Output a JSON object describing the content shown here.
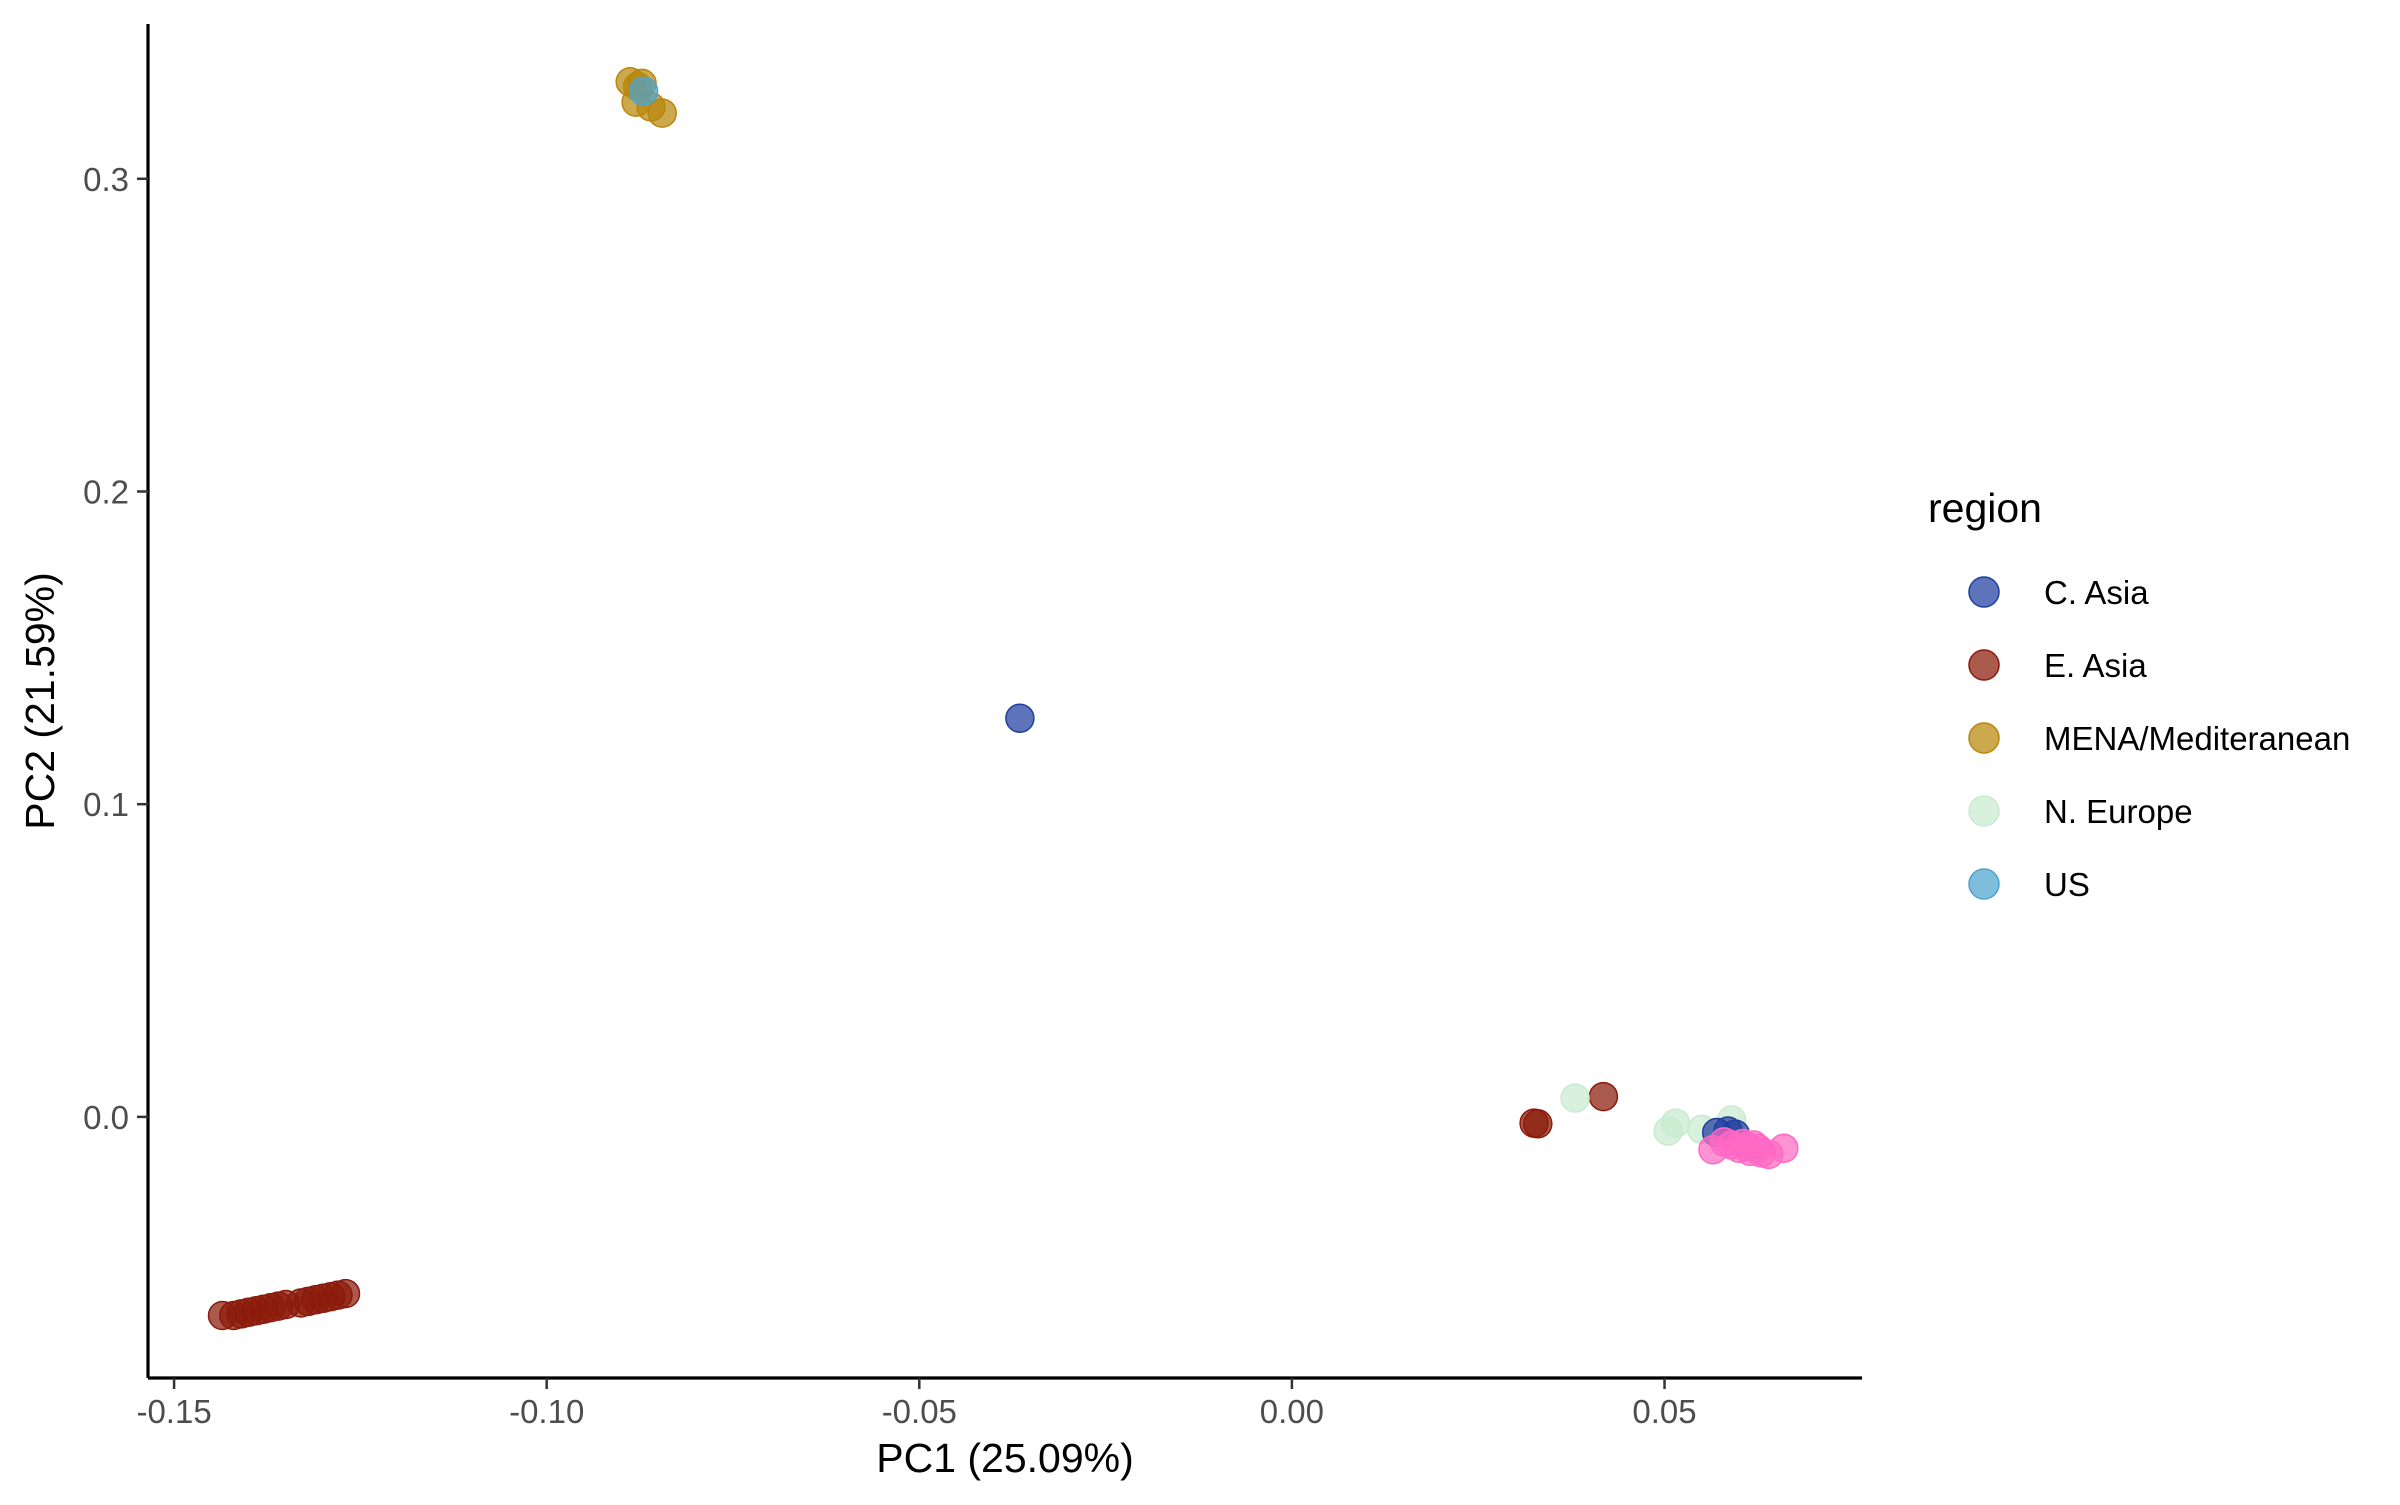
{
  "chart_data": {
    "type": "scatter",
    "title": "",
    "xlabel": "PC1 (25.09%)",
    "ylabel": "PC2 (21.59%)",
    "xlim": [
      -0.1535,
      0.0765
    ],
    "ylim": [
      -0.0835,
      0.3495
    ],
    "xticks": [
      {
        "value": -0.15,
        "label": "-0.15"
      },
      {
        "value": -0.1,
        "label": "-0.10"
      },
      {
        "value": -0.05,
        "label": "-0.05"
      },
      {
        "value": 0.0,
        "label": "0.00"
      },
      {
        "value": 0.05,
        "label": "0.05"
      }
    ],
    "yticks": [
      {
        "value": 0.0,
        "label": "0.0"
      },
      {
        "value": 0.1,
        "label": "0.1"
      },
      {
        "value": 0.2,
        "label": "0.2"
      },
      {
        "value": 0.3,
        "label": "0.3"
      }
    ],
    "grid": false,
    "legend": {
      "title": "region",
      "position": "right"
    },
    "series": [
      {
        "name": "MENA/Mediteranean",
        "color": "#B8860B",
        "points": [
          [
            -0.0888,
            0.331
          ],
          [
            -0.0878,
            0.3295
          ],
          [
            -0.0872,
            0.3305
          ],
          [
            -0.088,
            0.3245
          ],
          [
            -0.086,
            0.323
          ],
          [
            -0.0845,
            0.321
          ]
        ]
      },
      {
        "name": "US",
        "color": "#4EA3D0",
        "points": [
          [
            -0.087,
            0.328
          ]
        ]
      },
      {
        "name": "E. Asia",
        "color": "#8B1A0A",
        "points": [
          [
            -0.1435,
            -0.0635
          ],
          [
            -0.142,
            -0.0635
          ],
          [
            -0.141,
            -0.063
          ],
          [
            -0.14,
            -0.0625
          ],
          [
            -0.139,
            -0.062
          ],
          [
            -0.138,
            -0.0615
          ],
          [
            -0.137,
            -0.061
          ],
          [
            -0.136,
            -0.0605
          ],
          [
            -0.135,
            -0.06
          ],
          [
            -0.133,
            -0.0595
          ],
          [
            -0.132,
            -0.059
          ],
          [
            -0.131,
            -0.0585
          ],
          [
            -0.13,
            -0.058
          ],
          [
            -0.129,
            -0.0575
          ],
          [
            -0.128,
            -0.057
          ],
          [
            -0.127,
            -0.0565
          ],
          [
            0.0325,
            -0.002
          ],
          [
            0.033,
            -0.0022
          ],
          [
            0.0418,
            0.0065
          ]
        ]
      },
      {
        "name": "N. Europe",
        "color": "#C8EBCF",
        "points": [
          [
            0.038,
            0.006
          ],
          [
            0.0505,
            -0.0045
          ],
          [
            0.0515,
            -0.002
          ],
          [
            0.055,
            -0.004
          ],
          [
            0.059,
            -0.001
          ]
        ]
      },
      {
        "name": "C. Asia",
        "color": "#1F3F9F",
        "points": [
          [
            -0.0365,
            0.1275
          ],
          [
            0.057,
            -0.005
          ],
          [
            0.0585,
            -0.0045
          ],
          [
            0.0595,
            -0.0055
          ]
        ]
      },
      {
        "name": "",
        "color": "#FF69C4",
        "points": [
          [
            0.0565,
            -0.0105
          ],
          [
            0.058,
            -0.008
          ],
          [
            0.059,
            -0.009
          ],
          [
            0.06,
            -0.01
          ],
          [
            0.0605,
            -0.0085
          ],
          [
            0.061,
            -0.0095
          ],
          [
            0.0615,
            -0.011
          ],
          [
            0.062,
            -0.009
          ],
          [
            0.0625,
            -0.01
          ],
          [
            0.063,
            -0.0115
          ],
          [
            0.064,
            -0.012
          ],
          [
            0.066,
            -0.01
          ]
        ]
      }
    ],
    "legend_order": [
      "C. Asia",
      "E. Asia",
      "MENA/Mediteranean",
      "N. Europe",
      "US"
    ]
  }
}
